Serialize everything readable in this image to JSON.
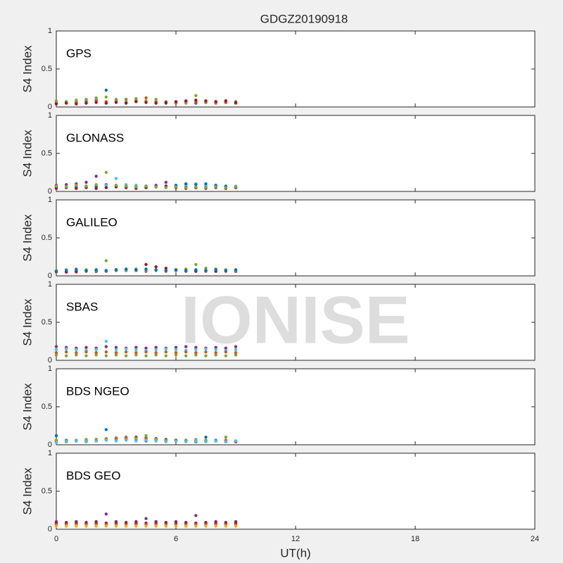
{
  "watermark": "IONISE",
  "chart_data": [
    {
      "type": "scatter",
      "title": "GDGZ20190918",
      "annotation": "GPS",
      "ylabel": "S4 Index",
      "xlim": [
        0,
        24
      ],
      "ylim": [
        0,
        1
      ],
      "yticks": [
        0,
        0.5,
        1
      ],
      "x": [
        0,
        0.5,
        1,
        1.5,
        2,
        2.5,
        3,
        3.5,
        4,
        4.5,
        5,
        5.5,
        6,
        6.5,
        7,
        7.5,
        8,
        8.5,
        9
      ],
      "series": [
        {
          "color": "#0072BD",
          "values": [
            0.06,
            0.07,
            0.05,
            0.08,
            0.09,
            0.22,
            0.07,
            0.06,
            0.08,
            0.07,
            0.06,
            0.05,
            0.06,
            0.07,
            0.05,
            0.06,
            0.07,
            0.06,
            0.05
          ]
        },
        {
          "color": "#D95319",
          "values": [
            0.05,
            0.06,
            0.07,
            0.06,
            0.08,
            0.07,
            0.09,
            0.1,
            0.08,
            0.12,
            0.07,
            0.06,
            0.05,
            0.06,
            0.07,
            0.06,
            0.05,
            0.06,
            0.05
          ]
        },
        {
          "color": "#77AC30",
          "values": [
            0.08,
            0.07,
            0.09,
            0.1,
            0.12,
            0.13,
            0.1,
            0.09,
            0.11,
            0.08,
            0.1,
            0.07,
            0.06,
            0.05,
            0.15,
            0.07,
            0.06,
            0.08,
            0.07
          ]
        },
        {
          "color": "#A2142F",
          "values": [
            0.04,
            0.05,
            0.04,
            0.05,
            0.06,
            0.05,
            0.06,
            0.05,
            0.07,
            0.06,
            0.05,
            0.06,
            0.07,
            0.08,
            0.09,
            0.08,
            0.07,
            0.08,
            0.06
          ]
        }
      ]
    },
    {
      "type": "scatter",
      "annotation": "GLONASS",
      "ylabel": "S4 Index",
      "xlim": [
        0,
        24
      ],
      "ylim": [
        0,
        1
      ],
      "yticks": [
        0,
        0.5,
        1
      ],
      "x": [
        0,
        0.5,
        1,
        1.5,
        2,
        2.5,
        3,
        3.5,
        4,
        4.5,
        5,
        5.5,
        6,
        6.5,
        7,
        7.5,
        8,
        8.5,
        9
      ],
      "series": [
        {
          "color": "#7E2F8E",
          "values": [
            0.08,
            0.09,
            0.1,
            0.12,
            0.2,
            0.09,
            0.08,
            0.07,
            0.06,
            0.07,
            0.08,
            0.12,
            0.07,
            0.06,
            0.05,
            0.06,
            0.07,
            0.06,
            0.05
          ]
        },
        {
          "color": "#4DBEEE",
          "values": [
            0.05,
            0.06,
            0.05,
            0.06,
            0.07,
            0.08,
            0.17,
            0.09,
            0.08,
            0.07,
            0.06,
            0.07,
            0.08,
            0.09,
            0.1,
            0.08,
            0.07,
            0.06,
            0.07
          ]
        },
        {
          "color": "#0072BD",
          "values": [
            0.06,
            0.05,
            0.06,
            0.07,
            0.06,
            0.05,
            0.06,
            0.05,
            0.06,
            0.05,
            0.06,
            0.07,
            0.08,
            0.1,
            0.09,
            0.1,
            0.08,
            0.07,
            0.06
          ]
        },
        {
          "color": "#A2142F",
          "values": [
            0.04,
            0.05,
            0.04,
            0.05,
            0.04,
            0.05,
            0.06,
            0.05,
            0.04,
            0.05,
            0.06,
            0.07,
            0.05,
            0.04,
            0.05,
            0.04,
            0.05,
            0.04,
            0.05
          ]
        },
        {
          "color": "#77AC30",
          "values": [
            0.07,
            0.06,
            0.08,
            0.07,
            0.09,
            0.25,
            0.08,
            0.07,
            0.06,
            0.07,
            0.06,
            0.05,
            0.06,
            0.05,
            0.06,
            0.05,
            0.06,
            0.05,
            0.06
          ]
        }
      ]
    },
    {
      "type": "scatter",
      "annotation": "GALILEO",
      "ylabel": "S4 Index",
      "xlim": [
        0,
        24
      ],
      "ylim": [
        0,
        1
      ],
      "yticks": [
        0,
        0.5,
        1
      ],
      "x": [
        0,
        0.5,
        1,
        1.5,
        2,
        2.5,
        3,
        3.5,
        4,
        4.5,
        5,
        5.5,
        6,
        6.5,
        7,
        7.5,
        8,
        8.5,
        9
      ],
      "series": [
        {
          "color": "#D95319",
          "values": [
            0.05,
            0.06,
            0.05,
            0.06,
            0.07,
            0.06,
            0.07,
            0.08,
            0.07,
            0.06,
            0.07,
            0.06,
            0.07,
            0.06,
            0.07,
            0.06,
            0.07,
            0.06,
            0.07
          ]
        },
        {
          "color": "#A2142F",
          "values": [
            0.06,
            0.05,
            0.06,
            0.07,
            0.06,
            0.07,
            0.08,
            0.07,
            0.08,
            0.15,
            0.12,
            0.1,
            0.08,
            0.07,
            0.06,
            0.07,
            0.06,
            0.07,
            0.06
          ]
        },
        {
          "color": "#77AC30",
          "values": [
            0.07,
            0.08,
            0.09,
            0.08,
            0.07,
            0.2,
            0.08,
            0.07,
            0.09,
            0.08,
            0.07,
            0.06,
            0.08,
            0.09,
            0.15,
            0.1,
            0.09,
            0.08,
            0.07
          ]
        },
        {
          "color": "#0072BD",
          "values": [
            0.06,
            0.07,
            0.08,
            0.07,
            0.08,
            0.07,
            0.08,
            0.09,
            0.08,
            0.09,
            0.08,
            0.07,
            0.08,
            0.07,
            0.08,
            0.07,
            0.08,
            0.07,
            0.08
          ]
        }
      ]
    },
    {
      "type": "scatter",
      "annotation": "SBAS",
      "ylabel": "S4 Index",
      "xlim": [
        0,
        24
      ],
      "ylim": [
        0,
        1
      ],
      "yticks": [
        0,
        0.5,
        1
      ],
      "x": [
        0,
        0.5,
        1,
        1.5,
        2,
        2.5,
        3,
        3.5,
        4,
        4.5,
        5,
        5.5,
        6,
        6.5,
        7,
        7.5,
        8,
        8.5,
        9
      ],
      "series": [
        {
          "color": "#7E2F8E",
          "values": [
            0.18,
            0.17,
            0.16,
            0.17,
            0.16,
            0.18,
            0.17,
            0.16,
            0.17,
            0.16,
            0.17,
            0.16,
            0.17,
            0.18,
            0.17,
            0.16,
            0.17,
            0.16,
            0.18
          ]
        },
        {
          "color": "#4DBEEE",
          "values": [
            0.14,
            0.15,
            0.14,
            0.13,
            0.14,
            0.25,
            0.14,
            0.15,
            0.14,
            0.13,
            0.14,
            0.15,
            0.14,
            0.13,
            0.14,
            0.15,
            0.14,
            0.13,
            0.14
          ]
        },
        {
          "color": "#77AC30",
          "values": [
            0.07,
            0.06,
            0.07,
            0.06,
            0.07,
            0.06,
            0.07,
            0.06,
            0.07,
            0.06,
            0.07,
            0.06,
            0.07,
            0.06,
            0.07,
            0.06,
            0.07,
            0.06,
            0.07
          ]
        },
        {
          "color": "#D95319",
          "values": [
            0.1,
            0.11,
            0.1,
            0.11,
            0.1,
            0.11,
            0.1,
            0.11,
            0.1,
            0.11,
            0.1,
            0.11,
            0.1,
            0.11,
            0.1,
            0.11,
            0.1,
            0.11,
            0.1
          ]
        }
      ]
    },
    {
      "type": "scatter",
      "annotation": "BDS NGEO",
      "ylabel": "S4 Index",
      "xlim": [
        0,
        24
      ],
      "ylim": [
        0,
        1
      ],
      "yticks": [
        0,
        0.5,
        1
      ],
      "x": [
        0,
        0.5,
        1,
        1.5,
        2,
        2.5,
        3,
        3.5,
        4,
        4.5,
        5,
        5.5,
        6,
        6.5,
        7,
        7.5,
        8,
        8.5,
        9
      ],
      "series": [
        {
          "color": "#0072BD",
          "values": [
            0.12,
            0.06,
            0.05,
            0.04,
            0.05,
            0.2,
            0.08,
            0.07,
            0.06,
            0.05,
            0.06,
            0.05,
            0.06,
            0.05,
            0.04,
            0.1,
            0.06,
            0.05,
            0.04
          ]
        },
        {
          "color": "#A2142F",
          "values": [
            0.04,
            0.04,
            0.05,
            0.05,
            0.06,
            0.07,
            0.08,
            0.09,
            0.1,
            0.09,
            0.08,
            0.07,
            0.06,
            0.06,
            0.05,
            0.05,
            0.05,
            0.04,
            0.04
          ]
        },
        {
          "color": "#D95319",
          "values": [
            0.05,
            0.05,
            0.06,
            0.06,
            0.07,
            0.08,
            0.09,
            0.1,
            0.09,
            0.08,
            0.07,
            0.06,
            0.05,
            0.06,
            0.05,
            0.06,
            0.05,
            0.06,
            0.05
          ]
        },
        {
          "color": "#77AC30",
          "values": [
            0.06,
            0.05,
            0.06,
            0.07,
            0.06,
            0.07,
            0.06,
            0.07,
            0.08,
            0.12,
            0.07,
            0.06,
            0.05,
            0.06,
            0.07,
            0.06,
            0.05,
            0.1,
            0.05
          ]
        },
        {
          "color": "#4DBEEE",
          "values": [
            0.03,
            0.04,
            0.05,
            0.04,
            0.05,
            0.06,
            0.05,
            0.06,
            0.05,
            0.06,
            0.05,
            0.04,
            0.05,
            0.04,
            0.05,
            0.04,
            0.05,
            0.04,
            0.05
          ]
        }
      ]
    },
    {
      "type": "scatter",
      "annotation": "BDS GEO",
      "ylabel": "S4 Index",
      "xlabel": "UT(h)",
      "xlim": [
        0,
        24
      ],
      "ylim": [
        0,
        1
      ],
      "yticks": [
        0,
        0.5,
        1
      ],
      "xticks": [
        0,
        6,
        12,
        18,
        24
      ],
      "x": [
        0,
        0.5,
        1,
        1.5,
        2,
        2.5,
        3,
        3.5,
        4,
        4.5,
        5,
        5.5,
        6,
        6.5,
        7,
        7.5,
        8,
        8.5,
        9
      ],
      "series": [
        {
          "color": "#7E2F8E",
          "values": [
            0.1,
            0.09,
            0.1,
            0.09,
            0.1,
            0.2,
            0.1,
            0.09,
            0.1,
            0.14,
            0.1,
            0.09,
            0.1,
            0.09,
            0.18,
            0.09,
            0.1,
            0.09,
            0.1
          ]
        },
        {
          "color": "#A2142F",
          "values": [
            0.08,
            0.08,
            0.08,
            0.08,
            0.08,
            0.08,
            0.08,
            0.08,
            0.08,
            0.08,
            0.08,
            0.08,
            0.08,
            0.08,
            0.08,
            0.08,
            0.08,
            0.08,
            0.08
          ]
        },
        {
          "color": "#D95319",
          "values": [
            0.06,
            0.06,
            0.06,
            0.06,
            0.06,
            0.06,
            0.06,
            0.06,
            0.06,
            0.06,
            0.06,
            0.06,
            0.06,
            0.06,
            0.06,
            0.06,
            0.06,
            0.06,
            0.06
          ]
        },
        {
          "color": "#EDB120",
          "values": [
            0.04,
            0.04,
            0.04,
            0.04,
            0.04,
            0.04,
            0.04,
            0.04,
            0.04,
            0.04,
            0.04,
            0.04,
            0.04,
            0.04,
            0.04,
            0.04,
            0.04,
            0.04,
            0.04
          ]
        }
      ]
    }
  ]
}
